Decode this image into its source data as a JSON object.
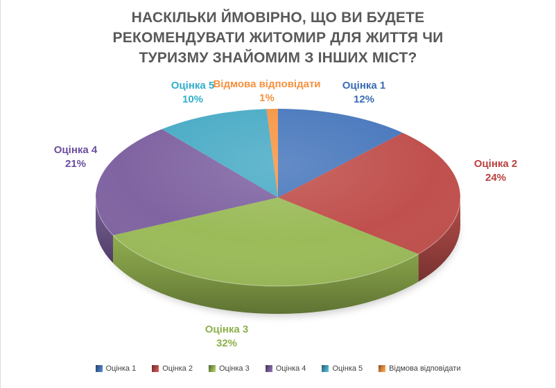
{
  "chart_data": {
    "type": "pie",
    "style": "3d",
    "title": "НАСКІЛЬКИ ЙМОВІРНО, ЩО ВИ БУДЕТЕ РЕКОМЕНДУВАТИ ЖИТОМИР ДЛЯ ЖИТТЯ ЧИ ТУРИЗМУ ЗНАЙОМИМ З ІНШИХ МІСТ?",
    "title_color": "#595959",
    "categories": [
      "Оцінка 1",
      "Оцінка 2",
      "Оцінка 3",
      "Оцінка 4",
      "Оцінка 5",
      "Відмова відповідати"
    ],
    "values": [
      12,
      24,
      32,
      21,
      10,
      1
    ],
    "unit": "%",
    "pct_labels": [
      "12%",
      "24%",
      "32%",
      "21%",
      "10%",
      "1%"
    ],
    "colors": [
      "#4A79BD",
      "#C0504D",
      "#9BBB59",
      "#8064A2",
      "#4BACC6",
      "#F79646"
    ],
    "side_colors": [
      "#3A5F94",
      "#97403D",
      "#7A9342",
      "#655080",
      "#3A87A0",
      "#C2763B"
    ],
    "label_colors": [
      "#3A6BB5",
      "#B8413E",
      "#8CB04A",
      "#6B4E9E",
      "#31AECB",
      "#F5913D"
    ],
    "start_angle_deg": 0,
    "direction": "clockwise",
    "legend_position": "bottom",
    "legend_text_color": "#3F3F3F",
    "background": "#FFFFFF"
  }
}
